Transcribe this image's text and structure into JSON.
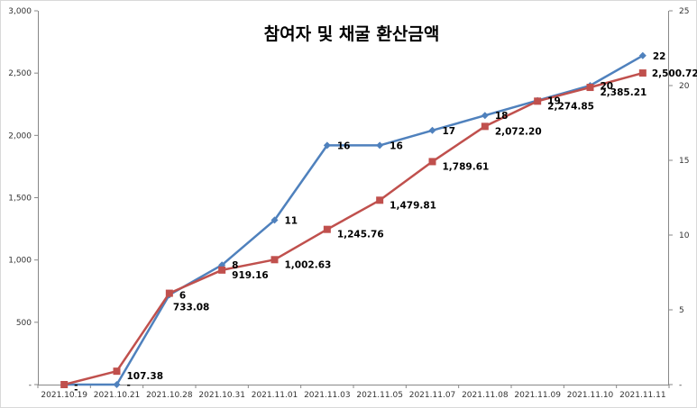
{
  "chart_data": {
    "type": "line",
    "title": "참여자 및 채굴 환산금액",
    "categories": [
      "2021.10.19",
      "2021.10.21",
      "2021.10.28",
      "2021.10.31",
      "2021.11.01",
      "2021.11.03",
      "2021.11.05",
      "2021.11.07",
      "2021.11.08",
      "2021.11.09",
      "2021.11.10",
      "2021.11.11"
    ],
    "y_left": {
      "ylim": [
        0,
        3000
      ],
      "ticks": [
        0,
        500,
        1000,
        1500,
        2000,
        2500,
        3000
      ],
      "tick_labels": [
        "-",
        "500",
        "1,000",
        "1,500",
        "2,000",
        "2,500",
        "3,000"
      ]
    },
    "y_right": {
      "ylim": [
        0,
        25
      ],
      "ticks": [
        0,
        5,
        10,
        15,
        20,
        25
      ],
      "tick_labels": [
        "-",
        "5",
        "10",
        "15",
        "20",
        "25"
      ]
    },
    "grid": false,
    "legend": "none",
    "series": [
      {
        "axis": "right",
        "color": "#4f81bd",
        "marker": "diamond",
        "values": [
          0,
          0,
          6,
          8,
          11,
          16,
          16,
          17,
          18,
          19,
          20,
          22
        ],
        "labels": [
          "-",
          "-",
          "6",
          "8",
          "11",
          "16",
          "16",
          "17",
          "18",
          "19",
          "20",
          "22"
        ]
      },
      {
        "axis": "left",
        "color": "#c0504d",
        "marker": "square",
        "values": [
          0,
          107.38,
          733.08,
          919.16,
          1002.63,
          1245.76,
          1479.81,
          1789.61,
          2072.2,
          2274.85,
          2385.21,
          2500.72
        ],
        "labels": [
          "-",
          "107.38",
          "733.08",
          "919.16",
          "1,002.63",
          "1,245.76",
          "1,479.81",
          "1,789.61",
          "2,072.20",
          "2,274.85",
          "2,385.21",
          "2,500.72"
        ]
      }
    ]
  }
}
